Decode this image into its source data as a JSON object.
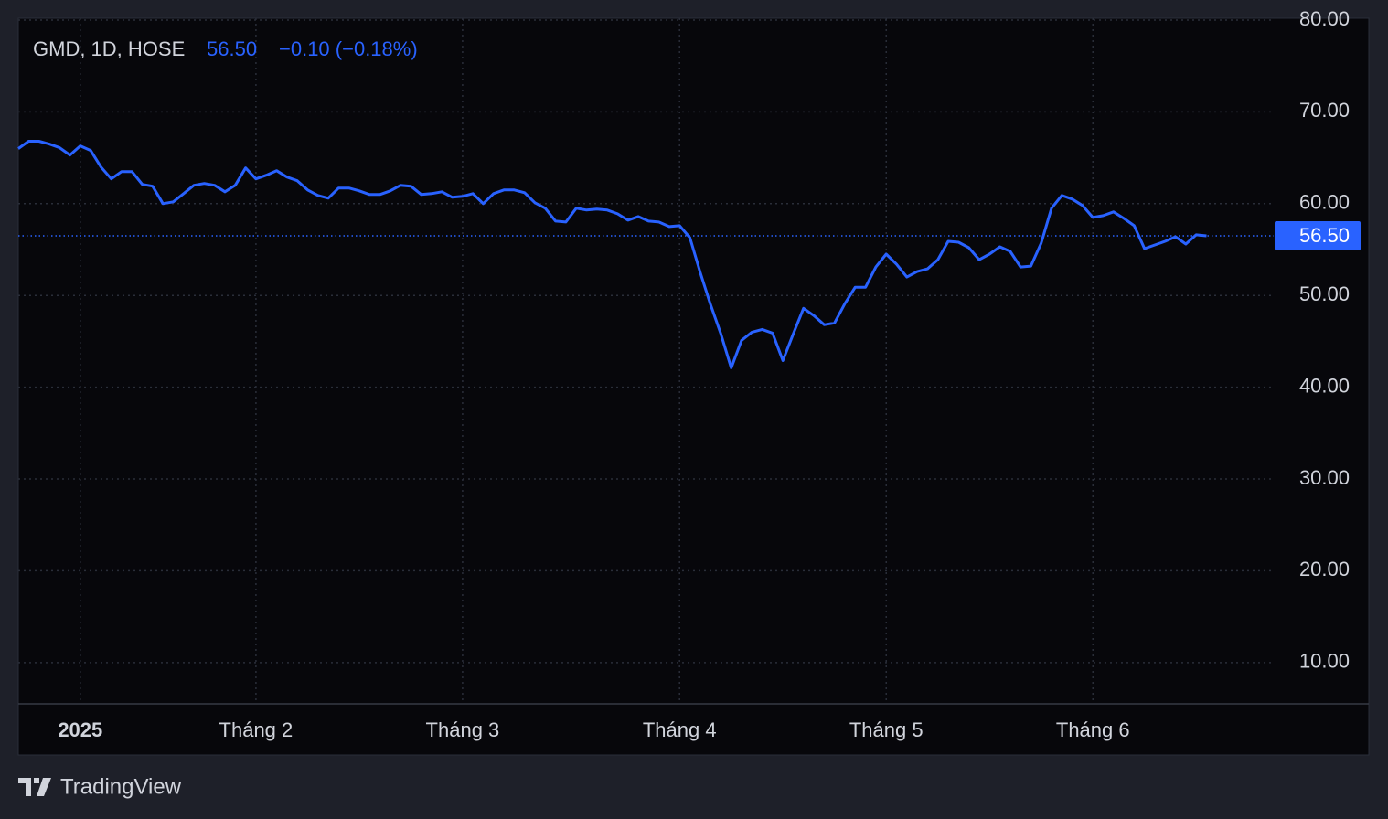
{
  "chart_data": {
    "type": "line",
    "title": "GMD, 1D, HOSE",
    "last_price": {
      "value": 56.5,
      "label": "56.50"
    },
    "change": "−0.10 (−0.18%)",
    "source": "TradingView",
    "color": "#2962ff",
    "x": [
      0,
      1,
      2,
      3,
      4,
      5,
      6,
      7,
      8,
      9,
      10,
      11,
      12,
      13,
      14,
      15,
      16,
      17,
      18,
      19,
      20,
      21,
      22,
      23,
      24,
      25,
      26,
      27,
      28,
      29,
      30,
      31,
      32,
      33,
      34,
      35,
      36,
      37,
      38,
      39,
      40,
      41,
      42,
      43,
      44,
      45,
      46,
      47,
      48,
      49,
      50,
      51,
      52,
      53,
      54,
      55,
      56,
      57,
      58,
      59,
      60,
      61,
      62,
      63,
      64,
      65,
      66,
      67,
      68,
      69,
      70,
      71,
      72,
      73,
      74,
      75,
      76,
      77,
      78,
      79,
      80,
      81,
      82,
      83,
      84,
      85,
      86,
      87,
      88,
      89,
      90,
      91,
      92,
      93,
      94,
      95,
      96,
      97,
      98,
      99,
      100,
      101,
      102,
      103,
      104,
      105,
      106,
      107,
      108,
      109,
      110,
      111,
      112,
      113,
      114,
      115
    ],
    "values": [
      66.0,
      66.8,
      66.8,
      66.5,
      66.1,
      65.3,
      66.3,
      65.8,
      64.0,
      62.7,
      63.5,
      63.5,
      62.1,
      61.9,
      60.0,
      60.2,
      61.1,
      62.0,
      62.2,
      62.0,
      61.3,
      62.0,
      63.9,
      62.7,
      63.1,
      63.6,
      62.9,
      62.5,
      61.5,
      60.9,
      60.6,
      61.7,
      61.7,
      61.4,
      61.0,
      61.0,
      61.4,
      62.0,
      61.9,
      61.0,
      61.1,
      61.3,
      60.7,
      60.8,
      61.1,
      60.0,
      61.1,
      61.5,
      61.5,
      61.2,
      60.1,
      59.5,
      58.1,
      58.0,
      59.5,
      59.3,
      59.4,
      59.3,
      58.9,
      58.2,
      58.6,
      58.1,
      58.0,
      57.5,
      57.6,
      56.3,
      52.5,
      49.0,
      45.8,
      42.1,
      45.1,
      46.0,
      46.3,
      45.9,
      42.9,
      45.8,
      48.6,
      47.8,
      46.8,
      47.0,
      49.1,
      50.9,
      50.9,
      53.1,
      54.5,
      53.4,
      52.0,
      52.6,
      52.9,
      53.9,
      55.9,
      55.8,
      55.2,
      53.9,
      54.5,
      55.3,
      54.8,
      53.1,
      53.2,
      55.7,
      59.5,
      60.9,
      60.5,
      59.8,
      58.5,
      58.7,
      59.1,
      58.4,
      57.6,
      55.1,
      55.5,
      55.9,
      56.4,
      55.6,
      56.6,
      56.5
    ],
    "xlim": [
      0,
      121.5
    ],
    "xticks": [
      {
        "value": 6,
        "label": "2025"
      },
      {
        "value": 23,
        "label": "Tháng 2"
      },
      {
        "value": 43,
        "label": "Tháng 3"
      },
      {
        "value": 64,
        "label": "Tháng 4"
      },
      {
        "value": 84,
        "label": "Tháng 5"
      },
      {
        "value": 104,
        "label": "Tháng 6"
      }
    ],
    "ylim": [
      5.5,
      80.2
    ],
    "yticks": [
      {
        "value": 10,
        "label": "10.00"
      },
      {
        "value": 20,
        "label": "20.00"
      },
      {
        "value": 30,
        "label": "30.00"
      },
      {
        "value": 40,
        "label": "40.00"
      },
      {
        "value": 50,
        "label": "50.00"
      },
      {
        "value": 60,
        "label": "60.00"
      },
      {
        "value": 70,
        "label": "70.00"
      },
      {
        "value": 80,
        "label": "80.00"
      }
    ],
    "grid": true
  }
}
